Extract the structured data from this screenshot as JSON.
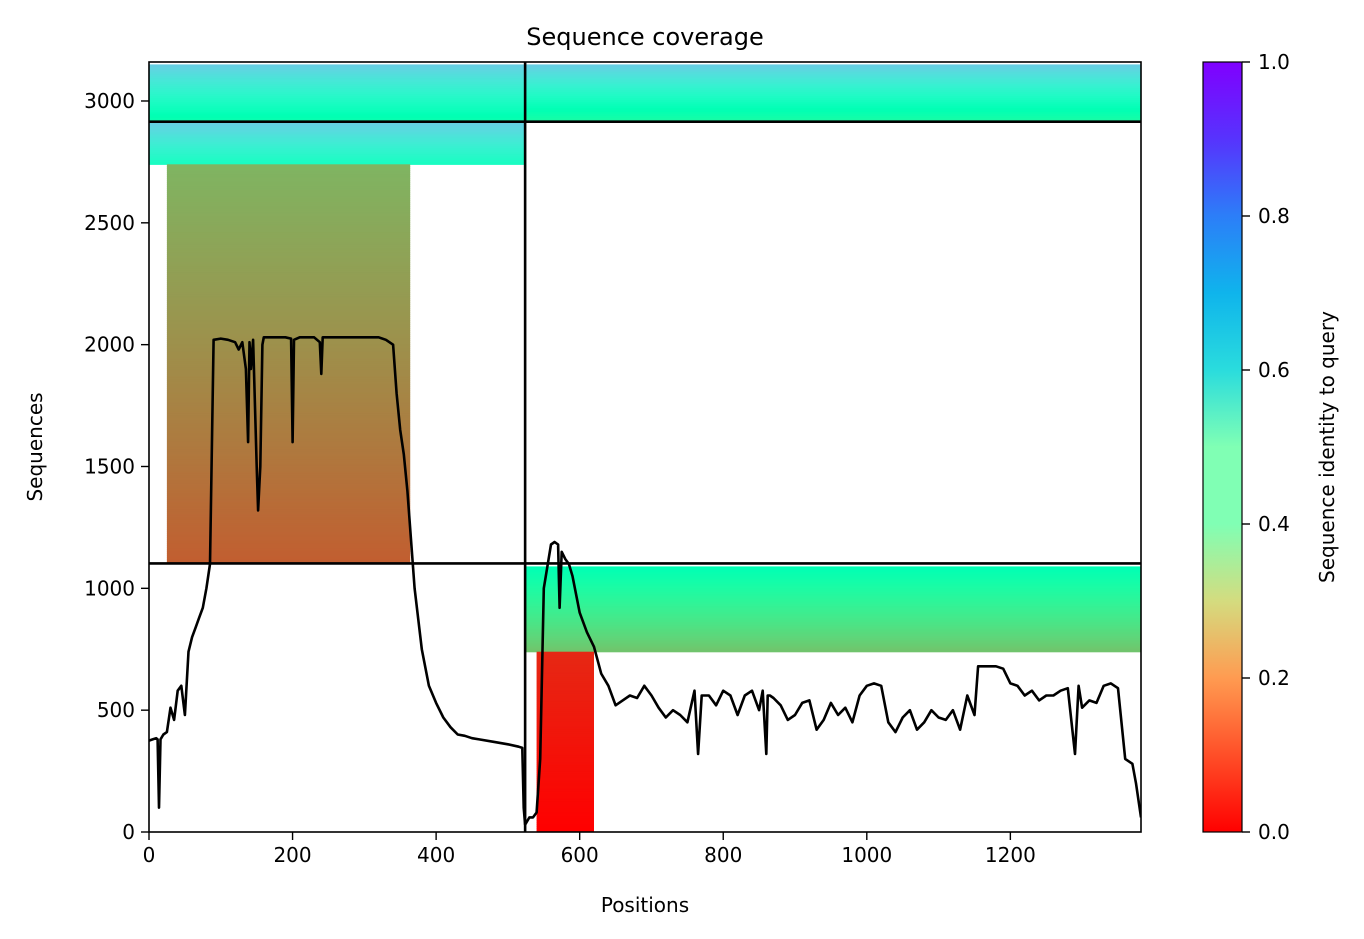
{
  "chart_data": {
    "type": "heatmap",
    "title": "Sequence coverage",
    "xlabel": "Positions",
    "ylabel": "Sequences",
    "xlim": [
      0,
      1382
    ],
    "ylim": [
      0,
      3160
    ],
    "xticks": [
      "0",
      "200",
      "400",
      "600",
      "800",
      "1000",
      "1200"
    ],
    "xtick_values": [
      0,
      200,
      400,
      600,
      800,
      1000,
      1200
    ],
    "yticks": [
      "0",
      "500",
      "1000",
      "1500",
      "2000",
      "2500",
      "3000"
    ],
    "ytick_values": [
      0,
      500,
      1000,
      1500,
      2000,
      2500,
      3000
    ],
    "colorbar": {
      "label": "Sequence identity to query",
      "ticks": [
        "0.0",
        "0.2",
        "0.4",
        "0.6",
        "0.8",
        "1.0"
      ],
      "tick_values": [
        0,
        0.2,
        0.4,
        0.6,
        0.8,
        1.0
      ],
      "colormap": "rainbow"
    },
    "chain_boundaries": {
      "x": [
        524
      ],
      "y": [
        1102,
        2915
      ]
    },
    "coverage_blocks": [
      {
        "x": [
          0,
          524
        ],
        "y": [
          2915,
          3150
        ],
        "identity": [
          0.48,
          0.7
        ]
      },
      {
        "x": [
          524,
          1382
        ],
        "y": [
          2915,
          3150
        ],
        "identity": [
          0.45,
          0.7
        ]
      },
      {
        "x": [
          0,
          524
        ],
        "y": [
          2740,
          2915
        ],
        "identity": [
          0.55,
          0.7
        ]
      },
      {
        "x": [
          25,
          364
        ],
        "y": [
          1102,
          2740
        ],
        "identity": [
          0.12,
          0.25
        ]
      },
      {
        "x": [
          524,
          1382
        ],
        "y": [
          740,
          1090
        ],
        "identity": [
          0.28,
          0.5
        ]
      },
      {
        "x": [
          540,
          620
        ],
        "y": [
          0,
          740
        ],
        "identity": [
          0.0,
          0.05
        ]
      }
    ],
    "coverage_line": {
      "x": [
        0,
        5,
        10,
        12,
        14,
        16,
        18,
        20,
        25,
        30,
        35,
        40,
        45,
        50,
        55,
        60,
        65,
        70,
        75,
        80,
        85,
        90,
        100,
        110,
        120,
        125,
        130,
        135,
        138,
        140,
        142,
        145,
        150,
        152,
        155,
        158,
        160,
        165,
        170,
        180,
        190,
        198,
        200,
        202,
        210,
        220,
        230,
        238,
        240,
        242,
        250,
        260,
        270,
        280,
        290,
        300,
        310,
        320,
        330,
        340,
        345,
        350,
        355,
        360,
        365,
        370,
        380,
        390,
        400,
        410,
        420,
        430,
        440,
        450,
        460,
        480,
        500,
        515,
        520,
        522,
        524,
        530,
        535,
        540,
        545,
        550,
        560,
        565,
        570,
        572,
        575,
        580,
        585,
        590,
        600,
        610,
        620,
        630,
        640,
        650,
        660,
        670,
        680,
        690,
        700,
        710,
        720,
        730,
        740,
        750,
        760,
        765,
        770,
        780,
        790,
        800,
        810,
        820,
        830,
        840,
        850,
        855,
        860,
        862,
        865,
        870,
        880,
        890,
        900,
        910,
        920,
        930,
        940,
        950,
        960,
        970,
        980,
        990,
        1000,
        1010,
        1020,
        1030,
        1040,
        1050,
        1060,
        1070,
        1080,
        1090,
        1100,
        1110,
        1120,
        1130,
        1140,
        1150,
        1155,
        1160,
        1170,
        1180,
        1190,
        1200,
        1210,
        1220,
        1230,
        1240,
        1250,
        1260,
        1270,
        1280,
        1290,
        1295,
        1300,
        1310,
        1320,
        1330,
        1340,
        1350,
        1360,
        1370,
        1375,
        1382
      ],
      "y": [
        375,
        380,
        385,
        380,
        100,
        380,
        390,
        400,
        410,
        510,
        460,
        580,
        600,
        480,
        740,
        800,
        840,
        880,
        920,
        1000,
        1100,
        2020,
        2025,
        2020,
        2010,
        1980,
        2010,
        1900,
        1600,
        2010,
        1900,
        2020,
        1500,
        1320,
        1500,
        2000,
        2030,
        2030,
        2030,
        2030,
        2030,
        2025,
        1600,
        2020,
        2030,
        2030,
        2030,
        2010,
        1880,
        2030,
        2030,
        2030,
        2030,
        2030,
        2030,
        2030,
        2030,
        2030,
        2020,
        2000,
        1800,
        1650,
        1550,
        1400,
        1200,
        1000,
        750,
        600,
        530,
        470,
        430,
        400,
        395,
        385,
        380,
        370,
        360,
        350,
        345,
        100,
        30,
        60,
        60,
        80,
        300,
        1000,
        1180,
        1190,
        1180,
        920,
        1150,
        1120,
        1100,
        1050,
        900,
        820,
        760,
        650,
        600,
        520,
        540,
        560,
        550,
        600,
        560,
        510,
        470,
        500,
        480,
        450,
        580,
        320,
        560,
        560,
        520,
        580,
        560,
        480,
        560,
        580,
        500,
        580,
        320,
        560,
        560,
        550,
        520,
        460,
        480,
        530,
        540,
        420,
        460,
        530,
        480,
        510,
        450,
        560,
        600,
        610,
        600,
        450,
        410,
        470,
        500,
        420,
        450,
        500,
        470,
        460,
        500,
        420,
        560,
        480,
        680,
        680,
        680,
        680,
        670,
        610,
        600,
        560,
        580,
        540,
        560,
        560,
        580,
        590,
        320,
        600,
        510,
        540,
        530,
        600,
        610,
        590,
        300,
        280,
        200,
        60
      ]
    }
  }
}
